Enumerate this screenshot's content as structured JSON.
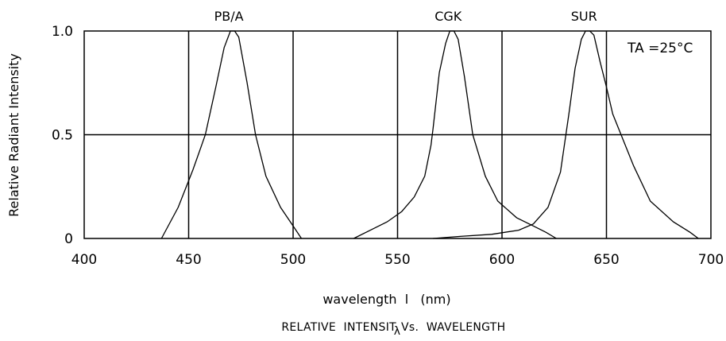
{
  "chart_data": {
    "type": "line",
    "xlabel": "wavelength  l   (nm)",
    "ylabel": "Relative Radiant Intensity",
    "caption": "RELATIVE  INTENSIT",
    "caption_lambda": "λ",
    "caption_tail": "Vs.  WAVELENGTH",
    "annotation": "TA =25°C",
    "xlim": [
      400,
      700
    ],
    "ylim": [
      0,
      1
    ],
    "x_ticks": [
      400,
      450,
      500,
      550,
      600,
      650,
      700
    ],
    "x_tick_labels": [
      "400",
      "450",
      "500",
      "550",
      "600",
      "650",
      "700"
    ],
    "y_ticks": [
      0,
      0.5,
      1
    ],
    "y_tick_labels": [
      "0",
      "0.5",
      "1.0"
    ],
    "grid_x": [
      450,
      500,
      550,
      600,
      650
    ],
    "grid_y": [
      0.5
    ],
    "series": [
      {
        "name": "PB/A",
        "points": [
          [
            437,
            0
          ],
          [
            445,
            0.15
          ],
          [
            452,
            0.33
          ],
          [
            458,
            0.5
          ],
          [
            463,
            0.73
          ],
          [
            467,
            0.92
          ],
          [
            470,
            1.0
          ],
          [
            472,
            1.0
          ],
          [
            474,
            0.97
          ],
          [
            478,
            0.75
          ],
          [
            482,
            0.5
          ],
          [
            487,
            0.3
          ],
          [
            494,
            0.15
          ],
          [
            500,
            0.06
          ],
          [
            504,
            0
          ]
        ]
      },
      {
        "name": "CGK",
        "points": [
          [
            529,
            0
          ],
          [
            537,
            0.04
          ],
          [
            545,
            0.08
          ],
          [
            552,
            0.13
          ],
          [
            558,
            0.2
          ],
          [
            563,
            0.3
          ],
          [
            566,
            0.45
          ],
          [
            567,
            0.53
          ],
          [
            570,
            0.8
          ],
          [
            573,
            0.94
          ],
          [
            575,
            1.0
          ],
          [
            577,
            1.0
          ],
          [
            579,
            0.96
          ],
          [
            582,
            0.78
          ],
          [
            586,
            0.5
          ],
          [
            592,
            0.3
          ],
          [
            598,
            0.18
          ],
          [
            607,
            0.1
          ],
          [
            615,
            0.06
          ],
          [
            621,
            0.03
          ],
          [
            626,
            0
          ]
        ]
      },
      {
        "name": "SUR",
        "points": [
          [
            567,
            0
          ],
          [
            580,
            0.01
          ],
          [
            595,
            0.02
          ],
          [
            608,
            0.04
          ],
          [
            615,
            0.07
          ],
          [
            622,
            0.15
          ],
          [
            628,
            0.32
          ],
          [
            632,
            0.6
          ],
          [
            635,
            0.82
          ],
          [
            638,
            0.96
          ],
          [
            640,
            1.0
          ],
          [
            642,
            1.0
          ],
          [
            644,
            0.98
          ],
          [
            647,
            0.85
          ],
          [
            650,
            0.73
          ],
          [
            653,
            0.6
          ],
          [
            657,
            0.5
          ],
          [
            663,
            0.35
          ],
          [
            671,
            0.18
          ],
          [
            682,
            0.08
          ],
          [
            690,
            0.03
          ],
          [
            694,
            0
          ]
        ]
      }
    ]
  }
}
